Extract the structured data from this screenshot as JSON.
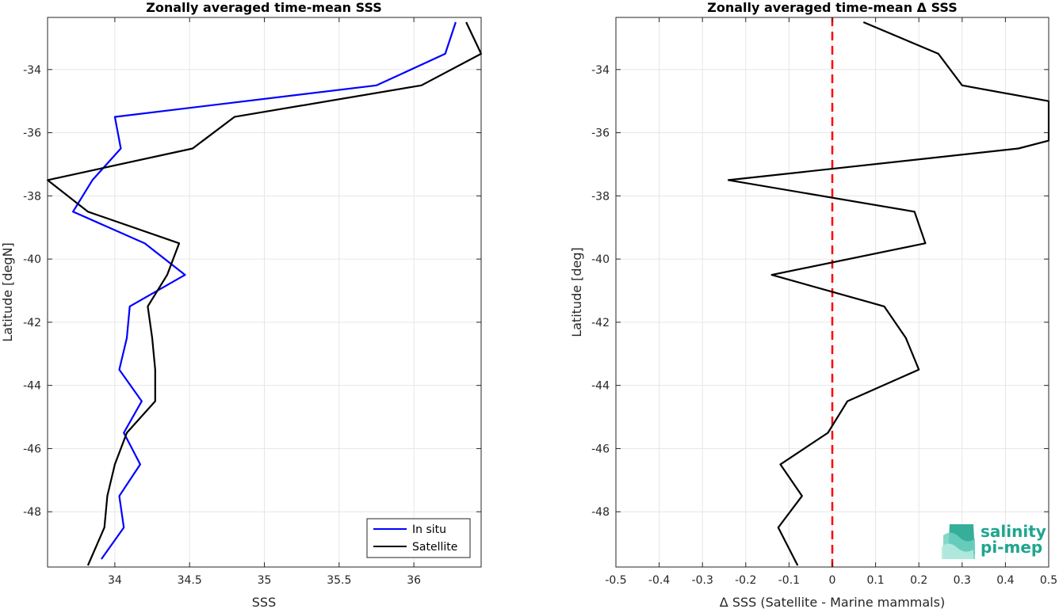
{
  "chart_data": [
    {
      "type": "line",
      "title": "Zonally averaged time-mean SSS",
      "xlabel": "SSS",
      "ylabel": "Latitude [degN]",
      "xlim": [
        33.55,
        36.45
      ],
      "ylim": [
        -49.75,
        -32.35
      ],
      "xticks": [
        34,
        34.5,
        35,
        35.5,
        36
      ],
      "xtick_labels": [
        "34",
        "34.5",
        "35",
        "35.5",
        "36"
      ],
      "yticks": [
        -48,
        -46,
        -44,
        -42,
        -40,
        -38,
        -36,
        -34
      ],
      "ytick_labels": [
        "-48",
        "-46",
        "-44",
        "-42",
        "-40",
        "-38",
        "-36",
        "-34"
      ],
      "grid": true,
      "legend_position": "bottom-right",
      "series": [
        {
          "name": "In situ",
          "color": "#0000ff",
          "x": [
            36.28,
            36.21,
            35.75,
            34.0,
            34.04,
            33.85,
            33.72,
            34.2,
            34.47,
            34.1,
            34.08,
            34.03,
            34.18,
            34.06,
            34.17,
            34.03,
            34.06,
            33.91
          ],
          "y": [
            -32.5,
            -33.5,
            -34.5,
            -35.5,
            -36.5,
            -37.5,
            -38.5,
            -39.5,
            -40.5,
            -41.5,
            -42.5,
            -43.5,
            -44.5,
            -45.5,
            -46.5,
            -47.5,
            -48.5,
            -49.5
          ]
        },
        {
          "name": "Satellite",
          "color": "#000000",
          "x": [
            36.35,
            36.45,
            36.05,
            34.8,
            34.52,
            33.55,
            33.82,
            34.43,
            34.35,
            34.22,
            34.25,
            34.27,
            34.27,
            34.08,
            34.0,
            33.95,
            33.93,
            33.82
          ],
          "y": [
            -32.5,
            -33.5,
            -34.5,
            -35.5,
            -36.5,
            -37.5,
            -38.5,
            -39.5,
            -40.5,
            -41.5,
            -42.5,
            -43.5,
            -44.5,
            -45.5,
            -46.5,
            -47.5,
            -48.5,
            -49.7
          ]
        }
      ]
    },
    {
      "type": "line",
      "title": "Zonally averaged time-mean Δ SSS",
      "xlabel": "Δ SSS (Satellite - Marine mammals)",
      "ylabel": "Latitude [deg]",
      "xlim": [
        -0.5,
        0.5
      ],
      "ylim": [
        -49.75,
        -32.35
      ],
      "xticks": [
        -0.5,
        -0.4,
        -0.3,
        -0.2,
        -0.1,
        0,
        0.1,
        0.2,
        0.3,
        0.4,
        0.5
      ],
      "xtick_labels": [
        "-0.5",
        "-0.4",
        "-0.3",
        "-0.2",
        "-0.1",
        "0",
        "0.1",
        "0.2",
        "0.3",
        "0.4",
        "0.5"
      ],
      "yticks": [
        -48,
        -46,
        -44,
        -42,
        -40,
        -38,
        -36,
        -34
      ],
      "ytick_labels": [
        "-48",
        "-46",
        "-44",
        "-42",
        "-40",
        "-38",
        "-36",
        "-34"
      ],
      "grid": true,
      "reference_line": {
        "x": 0,
        "color": "#ff0000",
        "style": "dashed"
      },
      "series": [
        {
          "color": "#000000",
          "x": [
            0.072,
            0.245,
            0.3,
            0.5,
            0.5,
            0.43,
            -0.24,
            0.19,
            0.215,
            -0.14,
            0.12,
            0.17,
            0.2,
            0.035,
            -0.01,
            -0.12,
            -0.07,
            -0.125,
            -0.08
          ],
          "y": [
            -32.5,
            -33.5,
            -34.5,
            -35.0,
            -36.25,
            -36.5,
            -37.5,
            -38.5,
            -39.5,
            -40.5,
            -41.5,
            -42.5,
            -43.5,
            -44.5,
            -45.5,
            -46.5,
            -47.5,
            -48.5,
            -49.7
          ]
        }
      ]
    }
  ],
  "logo": {
    "line1": "salinity",
    "line2": "pi-mep",
    "color": "#1fa58f"
  }
}
